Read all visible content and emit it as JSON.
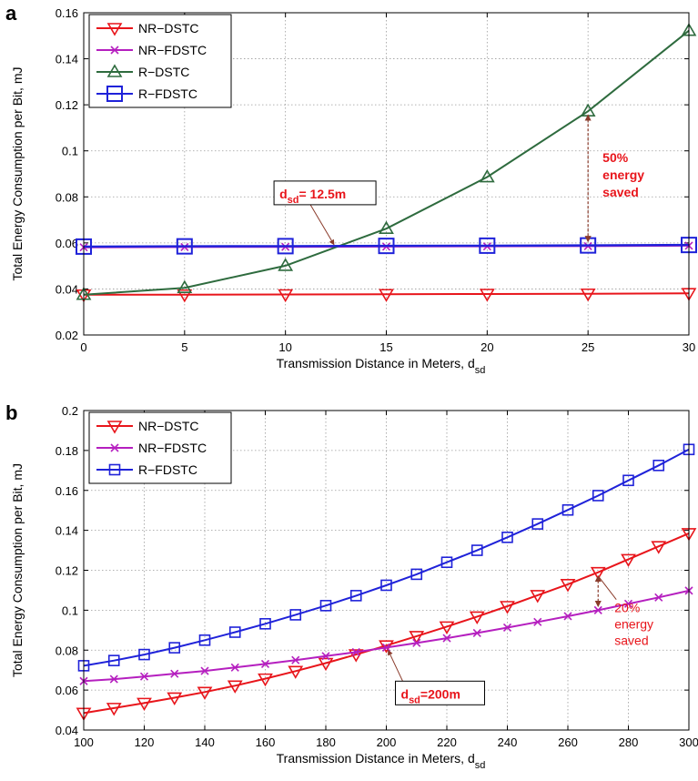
{
  "chart_data": [
    {
      "panel": "a",
      "type": "line",
      "xlabel": "Transmission Distance in Meters, d",
      "xlabel_sub": "sd",
      "ylabel": "Total Energy Consumption per Bit, mJ",
      "xlim": [
        0,
        30
      ],
      "ylim": [
        0.02,
        0.16
      ],
      "xticks": [
        0,
        5,
        10,
        15,
        20,
        25,
        30
      ],
      "yticks": [
        0.02,
        0.04,
        0.06,
        0.08,
        0.1,
        0.12,
        0.14,
        0.16
      ],
      "ytick_labels": [
        "0.02",
        "0.04",
        "0.06",
        "0.08",
        "0.1",
        "0.12",
        "0.14",
        "0.16"
      ],
      "grid": true,
      "legend_position": "top-left",
      "series": [
        {
          "name": "NR−DSTC",
          "color": "#e8151b",
          "marker": "triangle-down",
          "x": [
            0,
            5,
            10,
            15,
            20,
            25,
            30
          ],
          "y": [
            0.0375,
            0.0375,
            0.0376,
            0.0377,
            0.0378,
            0.0379,
            0.0381
          ]
        },
        {
          "name": "NR−FDSTC",
          "color": "#b51fbf",
          "marker": "x",
          "x": [
            0,
            5,
            10,
            15,
            20,
            25,
            30
          ],
          "y": [
            0.0581,
            0.0582,
            0.0583,
            0.0584,
            0.0585,
            0.0586,
            0.0588
          ]
        },
        {
          "name": "R−DSTC",
          "color": "#2e6b3e",
          "marker": "triangle-up",
          "x": [
            0,
            5,
            10,
            15,
            20,
            25,
            30
          ],
          "y": [
            0.0375,
            0.0405,
            0.0501,
            0.0662,
            0.0886,
            0.1172,
            0.1522
          ]
        },
        {
          "name": "R−FDSTC",
          "color": "#1f22d9",
          "marker": "square",
          "x": [
            0,
            5,
            10,
            15,
            20,
            25,
            30
          ],
          "y": [
            0.0584,
            0.0585,
            0.0586,
            0.0587,
            0.0588,
            0.0589,
            0.0591
          ]
        }
      ],
      "annotations": {
        "crossover": {
          "label": "d",
          "sub": "sd",
          "rest": "= 12.5m",
          "x": 12.5,
          "y": 0.0584
        },
        "saving": {
          "lines": [
            "50%",
            "energy",
            "saved"
          ],
          "x": 25,
          "y_top": 0.1172,
          "y_bottom": 0.0589
        }
      }
    },
    {
      "panel": "b",
      "type": "line",
      "xlabel": "Transmission Distance in Meters, d",
      "xlabel_sub": "sd",
      "ylabel": "Total Energy Consumption per Bit, mJ",
      "xlim": [
        100,
        300
      ],
      "ylim": [
        0.04,
        0.2
      ],
      "xticks": [
        100,
        120,
        140,
        160,
        180,
        200,
        220,
        240,
        260,
        280,
        300
      ],
      "yticks": [
        0.04,
        0.06,
        0.08,
        0.1,
        0.12,
        0.14,
        0.16,
        0.18,
        0.2
      ],
      "ytick_labels": [
        "0.04",
        "0.06",
        "0.08",
        "0.1",
        "0.12",
        "0.14",
        "0.16",
        "0.18",
        "0.2"
      ],
      "grid": true,
      "legend_position": "top-left",
      "series": [
        {
          "name": "NR−DSTC",
          "color": "#e8151b",
          "marker": "triangle-down",
          "x": [
            100,
            110,
            120,
            130,
            140,
            150,
            160,
            170,
            180,
            190,
            200,
            210,
            220,
            230,
            240,
            250,
            260,
            270,
            280,
            290,
            300
          ],
          "y": [
            0.0485,
            0.051,
            0.0535,
            0.0562,
            0.059,
            0.0622,
            0.0657,
            0.0695,
            0.0735,
            0.0778,
            0.0823,
            0.087,
            0.0918,
            0.0968,
            0.102,
            0.1075,
            0.113,
            0.119,
            0.1255,
            0.132,
            0.1385
          ]
        },
        {
          "name": "NR−FDSTC",
          "color": "#b51fbf",
          "marker": "x",
          "x": [
            100,
            110,
            120,
            130,
            140,
            150,
            160,
            170,
            180,
            190,
            200,
            210,
            220,
            230,
            240,
            250,
            260,
            270,
            280,
            290,
            300
          ],
          "y": [
            0.0645,
            0.0655,
            0.0668,
            0.0682,
            0.0696,
            0.0713,
            0.0731,
            0.075,
            0.077,
            0.079,
            0.0813,
            0.0836,
            0.086,
            0.0886,
            0.0913,
            0.0941,
            0.097,
            0.1,
            0.1032,
            0.1064,
            0.1098
          ]
        },
        {
          "name": "R−FDSTC",
          "color": "#1f22d9",
          "marker": "square",
          "x": [
            100,
            110,
            120,
            130,
            140,
            150,
            160,
            170,
            180,
            190,
            200,
            210,
            220,
            230,
            240,
            250,
            260,
            270,
            280,
            290,
            300
          ],
          "y": [
            0.0722,
            0.0748,
            0.0778,
            0.0812,
            0.085,
            0.089,
            0.0932,
            0.0977,
            0.1023,
            0.1073,
            0.1125,
            0.118,
            0.124,
            0.13,
            0.1365,
            0.1432,
            0.1502,
            0.1574,
            0.165,
            0.1725,
            0.1805
          ]
        }
      ],
      "annotations": {
        "crossover": {
          "label": "d",
          "sub": "sd",
          "rest": "=200m",
          "x": 200,
          "y": 0.0818
        },
        "saving": {
          "lines": [
            "20%",
            "energy",
            "saved"
          ],
          "x": 270,
          "y_top": 0.119,
          "y_bottom": 0.1
        }
      }
    }
  ]
}
